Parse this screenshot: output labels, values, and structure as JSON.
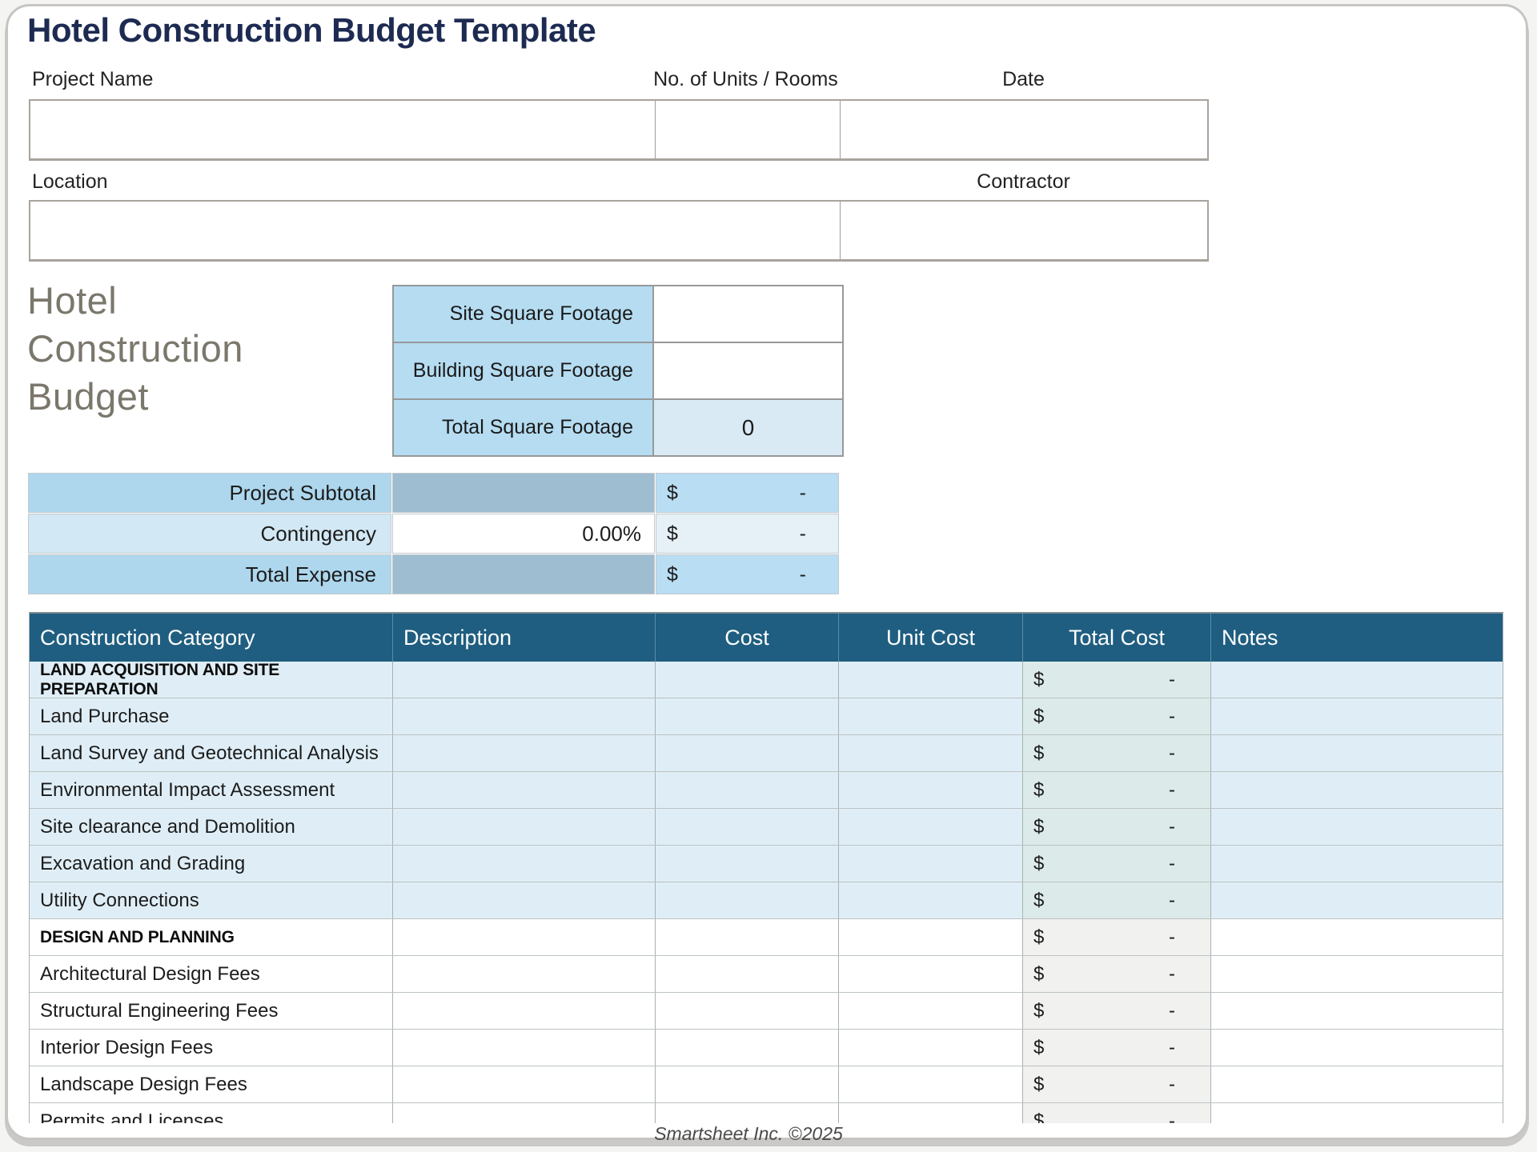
{
  "header": {
    "title": "Hotel Construction Budget Template"
  },
  "form": {
    "project_name": {
      "label": "Project Name",
      "value": ""
    },
    "units_rooms": {
      "label": "No. of Units / Rooms",
      "value": ""
    },
    "date": {
      "label": "Date",
      "value": ""
    },
    "location": {
      "label": "Location",
      "value": ""
    },
    "contractor": {
      "label": "Contractor",
      "value": ""
    }
  },
  "side_heading": {
    "line1": "Hotel",
    "line2": "Construction",
    "line3": "Budget"
  },
  "square_footage": {
    "rows": [
      {
        "label": "Site Square Footage",
        "value": "",
        "computed": false
      },
      {
        "label": "Building Square Footage",
        "value": "",
        "computed": false
      },
      {
        "label": "Total Square Footage",
        "value": "0",
        "computed": true
      }
    ]
  },
  "summary": {
    "currency_symbol": "$",
    "rows": [
      {
        "label": "Project Subtotal",
        "middle": "",
        "amount": "-",
        "tone": "strong",
        "middle_editable": false
      },
      {
        "label": "Contingency",
        "middle": "0.00%",
        "amount": "-",
        "tone": "light",
        "middle_editable": true
      },
      {
        "label": "Total Expense",
        "middle": "",
        "amount": "-",
        "tone": "strong",
        "middle_editable": false
      }
    ]
  },
  "budget_table": {
    "columns": [
      {
        "label": "Construction Category",
        "align": "left"
      },
      {
        "label": "Description",
        "align": "left"
      },
      {
        "label": "Cost",
        "align": "center"
      },
      {
        "label": "Unit Cost",
        "align": "center"
      },
      {
        "label": "Total Cost",
        "align": "center"
      },
      {
        "label": "Notes",
        "align": "left"
      }
    ],
    "currency_symbol": "$",
    "rows": [
      {
        "category": "LAND ACQUISITION AND SITE PREPARATION",
        "type": "section",
        "theme": "blue",
        "description": "",
        "cost": "",
        "unit_cost": "",
        "total": "-",
        "notes": ""
      },
      {
        "category": "Land Purchase",
        "type": "item",
        "theme": "blue",
        "description": "",
        "cost": "",
        "unit_cost": "",
        "total": "-",
        "notes": ""
      },
      {
        "category": "Land Survey and Geotechnical Analysis",
        "type": "item",
        "theme": "blue",
        "description": "",
        "cost": "",
        "unit_cost": "",
        "total": "-",
        "notes": ""
      },
      {
        "category": "Environmental Impact Assessment",
        "type": "item",
        "theme": "blue",
        "description": "",
        "cost": "",
        "unit_cost": "",
        "total": "-",
        "notes": ""
      },
      {
        "category": "Site clearance and Demolition",
        "type": "item",
        "theme": "blue",
        "description": "",
        "cost": "",
        "unit_cost": "",
        "total": "-",
        "notes": ""
      },
      {
        "category": "Excavation and Grading",
        "type": "item",
        "theme": "blue",
        "description": "",
        "cost": "",
        "unit_cost": "",
        "total": "-",
        "notes": ""
      },
      {
        "category": "Utility Connections",
        "type": "item",
        "theme": "blue",
        "description": "",
        "cost": "",
        "unit_cost": "",
        "total": "-",
        "notes": ""
      },
      {
        "category": "DESIGN AND PLANNING",
        "type": "section",
        "theme": "white",
        "description": "",
        "cost": "",
        "unit_cost": "",
        "total": "-",
        "notes": ""
      },
      {
        "category": "Architectural Design Fees",
        "type": "item",
        "theme": "white",
        "description": "",
        "cost": "",
        "unit_cost": "",
        "total": "-",
        "notes": ""
      },
      {
        "category": "Structural Engineering Fees",
        "type": "item",
        "theme": "white",
        "description": "",
        "cost": "",
        "unit_cost": "",
        "total": "-",
        "notes": ""
      },
      {
        "category": "Interior Design Fees",
        "type": "item",
        "theme": "white",
        "description": "",
        "cost": "",
        "unit_cost": "",
        "total": "-",
        "notes": ""
      },
      {
        "category": "Landscape Design Fees",
        "type": "item",
        "theme": "white",
        "description": "",
        "cost": "",
        "unit_cost": "",
        "total": "-",
        "notes": ""
      },
      {
        "category": "Permits and Licenses",
        "type": "item",
        "theme": "white",
        "description": "",
        "cost": "",
        "unit_cost": "",
        "total": "-",
        "notes": ""
      }
    ]
  },
  "square_footage_total_value": "0",
  "footer": {
    "credit": "Smartsheet Inc. ©2025"
  },
  "colors": {
    "title_navy": "#1D2B52",
    "table_header_teal": "#1F5E80",
    "row_light_blue": "#DFEEF6",
    "sqft_label_blue": "#B5DCF1",
    "sqft_total_blue": "#D9EAF4",
    "summary_label_blue": "#AED7EE",
    "summary_mid_grayblue": "#9FBDD1",
    "summary_value_blue": "#B9DDF2",
    "summary_light_blue": "#D2E8F4",
    "summary_light_value": "#E6F0F7",
    "total_cell_tint_blue": "#DCEBE9",
    "total_cell_tint_gray": "#F1F1EF",
    "side_heading_gray": "#7B776C"
  }
}
